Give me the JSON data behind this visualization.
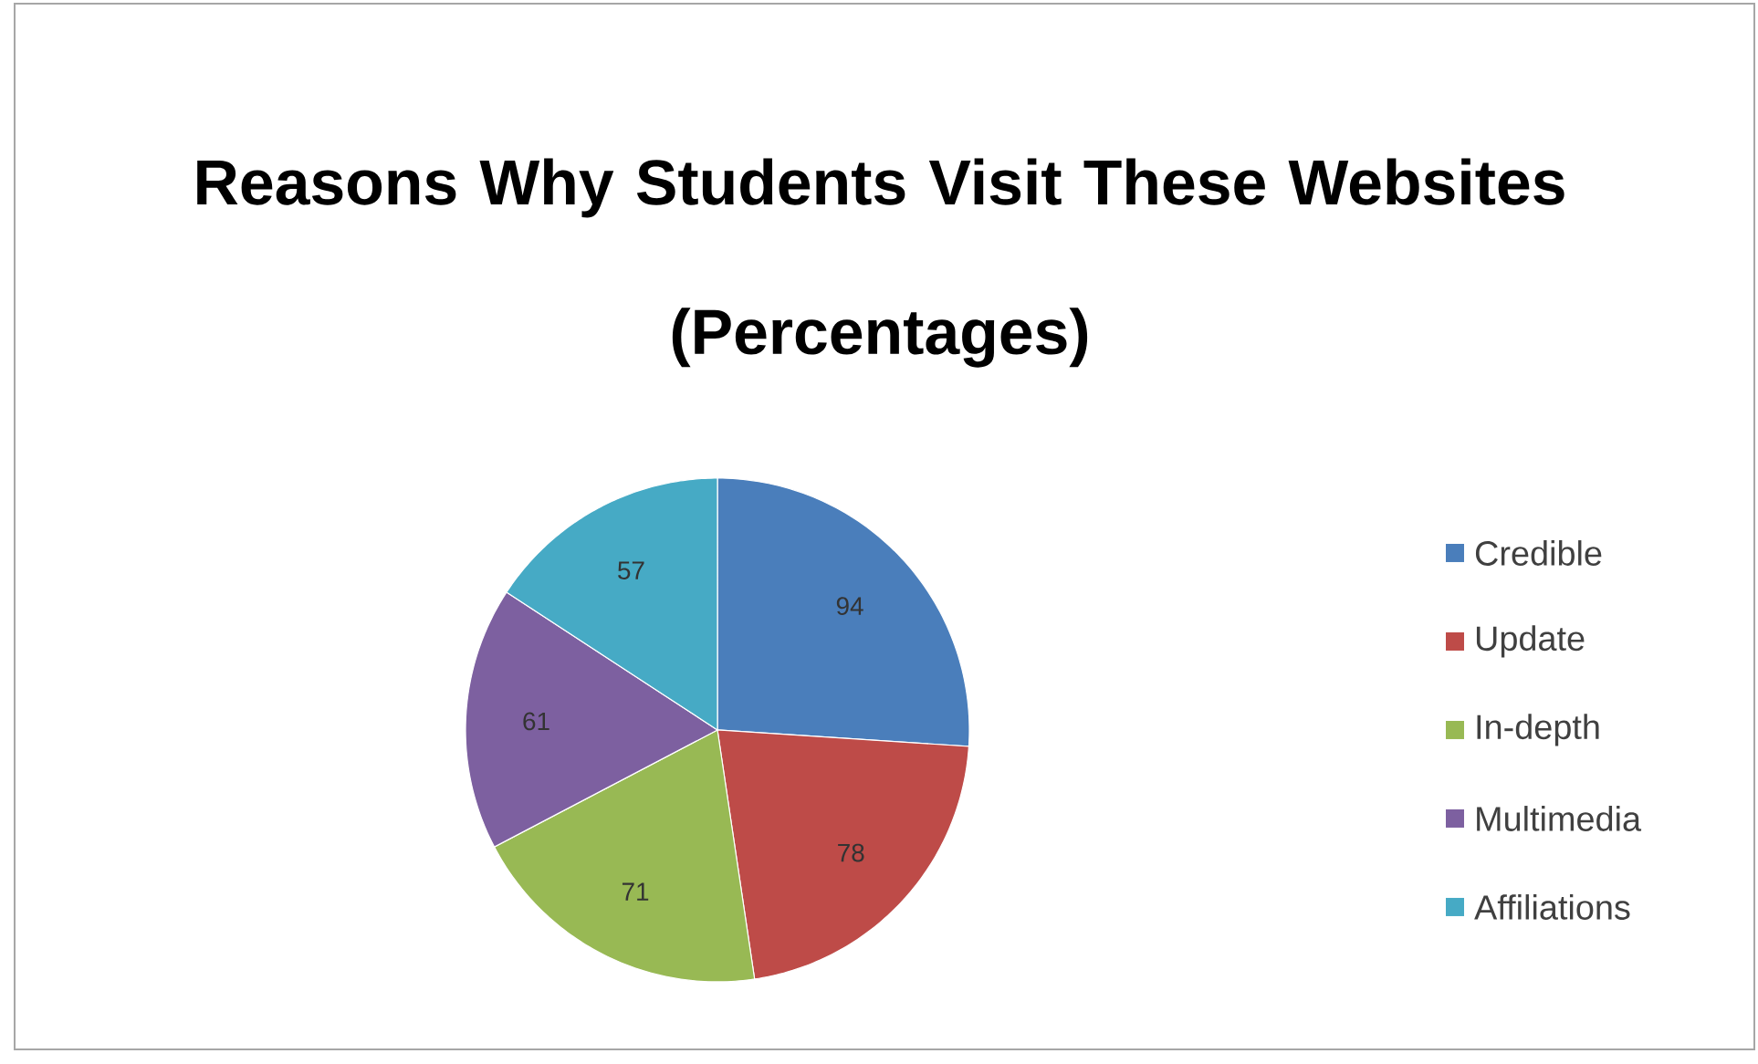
{
  "chart_data": {
    "type": "pie",
    "title": "Reasons Why Students Visit These Websites",
    "subtitle": "(Percentages)",
    "categories": [
      "Credible",
      "Update",
      "In-depth",
      "Multimedia",
      "Affiliations"
    ],
    "values": [
      94,
      78,
      71,
      61,
      57
    ],
    "colors": [
      "#4a7ebb",
      "#be4b48",
      "#98b954",
      "#7d60a0",
      "#46aac5"
    ],
    "data_labels": true,
    "legend": "right"
  }
}
